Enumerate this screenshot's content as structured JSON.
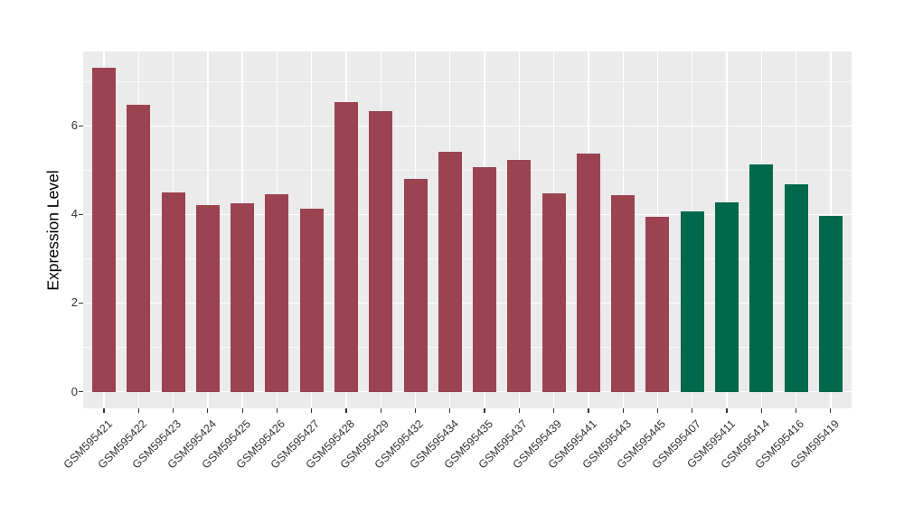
{
  "chart_data": {
    "type": "bar",
    "title": "",
    "xlabel": "",
    "ylabel": "Expression Level",
    "ylim": [
      0,
      7.69
    ],
    "yticks": [
      0,
      2,
      4,
      6
    ],
    "ytick_labels": [
      "0",
      "2",
      "4",
      "6"
    ],
    "yminor": [
      1,
      3,
      5,
      7
    ],
    "grid": "on",
    "legend_position": "none",
    "categories": [
      "GSM595421",
      "GSM595422",
      "GSM595423",
      "GSM595424",
      "GSM595425",
      "GSM595426",
      "GSM595427",
      "GSM595428",
      "GSM595429",
      "GSM595432",
      "GSM595434",
      "GSM595435",
      "GSM595437",
      "GSM595439",
      "GSM595441",
      "GSM595443",
      "GSM595445",
      "GSM595407",
      "GSM595411",
      "GSM595414",
      "GSM595416",
      "GSM595419"
    ],
    "values": [
      7.32,
      6.47,
      4.49,
      4.21,
      4.26,
      4.46,
      4.13,
      6.53,
      6.34,
      4.81,
      5.41,
      5.06,
      5.24,
      4.47,
      5.37,
      4.44,
      3.94,
      4.06,
      4.27,
      5.13,
      4.69,
      3.96
    ],
    "bar_colors": [
      "#9B4351",
      "#9B4351",
      "#9B4351",
      "#9B4351",
      "#9B4351",
      "#9B4351",
      "#9B4351",
      "#9B4351",
      "#9B4351",
      "#9B4351",
      "#9B4351",
      "#9B4351",
      "#9B4351",
      "#9B4351",
      "#9B4351",
      "#9B4351",
      "#9B4351",
      "#00684B",
      "#00684B",
      "#00684B",
      "#00684B",
      "#00684B"
    ],
    "palette": {
      "group_red": "#9B4351",
      "group_green": "#00684B"
    },
    "panel_background": "#EBEBEB",
    "grid_color": "#FFFFFF",
    "tick_color": "#333333",
    "tick_label_color": "#333333",
    "axis_title_color": "#000000"
  }
}
